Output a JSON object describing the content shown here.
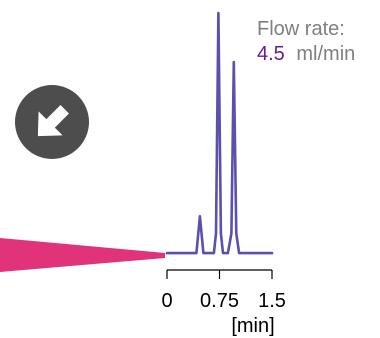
{
  "flow_rate": {
    "label": "Flow rate:",
    "value": "4.5",
    "unit": "ml/min",
    "value_color": "#6a1b9a",
    "label_color": "#808080"
  },
  "arrow_icon": {
    "name": "arrow-down-right-icon",
    "color": "#4d4d4d"
  },
  "beam": {
    "color": "#e0337a"
  },
  "chart_data": {
    "type": "line",
    "title": "",
    "xlabel": "[min]",
    "ylabel": "",
    "x_ticks": [
      "0",
      "0.75",
      "1.5"
    ],
    "xlim": [
      0,
      1.5
    ],
    "line_color": "#5b4fb0",
    "series": [
      {
        "x": [
          0.0,
          0.3,
          0.42,
          0.47,
          0.52,
          0.58,
          0.67,
          0.7,
          0.735,
          0.77,
          0.8,
          0.87,
          0.92,
          0.955,
          0.99,
          1.03,
          1.1,
          1.2,
          1.3,
          1.4,
          1.5
        ],
        "y": [
          0.02,
          0.02,
          0.02,
          0.17,
          0.02,
          0.02,
          0.02,
          0.1,
          1.0,
          0.1,
          0.02,
          0.02,
          0.1,
          0.8,
          0.1,
          0.02,
          0.02,
          0.02,
          0.02,
          0.02,
          0.02
        ]
      }
    ]
  }
}
